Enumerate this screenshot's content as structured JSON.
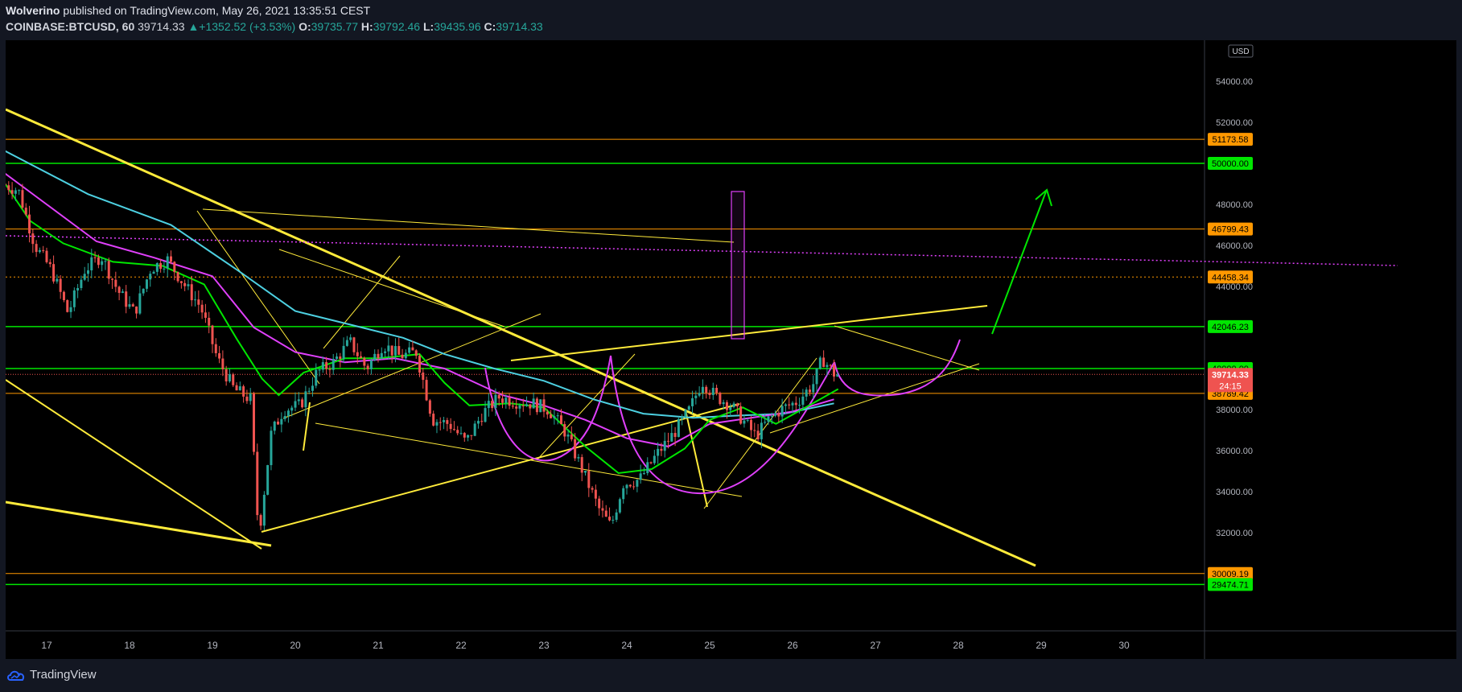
{
  "header": {
    "author": "Wolverino",
    "published_text": "published on TradingView.com, May 26, 2021 13:35:51 CEST",
    "symbol": "COINBASE:BTCUSD, 60",
    "last": "39714.33",
    "change": "+1352.52 (+3.53%)",
    "o_label": "O:",
    "o_value": "39735.77",
    "h_label": "H:",
    "h_value": "39792.46",
    "l_label": "L:",
    "l_value": "39435.96",
    "c_label": "C:",
    "c_value": "39714.33"
  },
  "footer": {
    "brand": "TradingView"
  },
  "colors": {
    "background": "#000000",
    "up": "#26a69a",
    "down": "#ef5350",
    "orange_level": "#ff9800",
    "green_level": "#00e600",
    "yellow": "#ffeb3b",
    "magenta": "#e040fb",
    "cyan": "#4dd0e1"
  },
  "chart_data": {
    "type": "candlestick",
    "currency": "USD",
    "ylim": [
      29000,
      54000
    ],
    "y_ticks": [
      "54000.00",
      "52000.00",
      "48000.00",
      "46000.00",
      "44000.00",
      "38000.00",
      "36000.00",
      "34000.00",
      "32000.00"
    ],
    "x_tick_labels": [
      "17",
      "18",
      "19",
      "20",
      "21",
      "22",
      "23",
      "24",
      "25",
      "26",
      "27",
      "28",
      "29",
      "30"
    ],
    "horizontal_levels": [
      {
        "value": 51173.58,
        "label": "51173.58",
        "color": "orange"
      },
      {
        "value": 50000.0,
        "label": "50000.00",
        "color": "green"
      },
      {
        "value": 46799.43,
        "label": "46799.43",
        "color": "orange"
      },
      {
        "value": 44458.34,
        "label": "44458.34",
        "color": "orange",
        "style": "dotted"
      },
      {
        "value": 42046.23,
        "label": "42046.23",
        "color": "green"
      },
      {
        "value": 40000.0,
        "label": "40000.00",
        "color": "green"
      },
      {
        "value": 38789.42,
        "label": "38789.42",
        "color": "orange"
      },
      {
        "value": 30009.19,
        "label": "30009.19",
        "color": "orange"
      },
      {
        "value": 29474.71,
        "label": "29474.71",
        "color": "green"
      }
    ],
    "last_price": {
      "value": 39714.33,
      "label": "39714.33",
      "countdown": "24:15"
    },
    "price_path": [
      [
        16.5,
        49000
      ],
      [
        16.7,
        48700
      ],
      [
        16.9,
        46000
      ],
      [
        17.1,
        44800
      ],
      [
        17.3,
        42700
      ],
      [
        17.5,
        44800
      ],
      [
        17.7,
        45500
      ],
      [
        17.9,
        43800
      ],
      [
        18.1,
        42700
      ],
      [
        18.3,
        44900
      ],
      [
        18.5,
        45300
      ],
      [
        18.7,
        44100
      ],
      [
        18.9,
        43000
      ],
      [
        19.1,
        40500
      ],
      [
        19.3,
        39000
      ],
      [
        19.5,
        38500
      ],
      [
        19.6,
        31800
      ],
      [
        19.75,
        36800
      ],
      [
        19.9,
        38000
      ],
      [
        20.1,
        38200
      ],
      [
        20.3,
        39800
      ],
      [
        20.5,
        40300
      ],
      [
        20.7,
        41300
      ],
      [
        20.9,
        40000
      ],
      [
        21.1,
        41200
      ],
      [
        21.3,
        40600
      ],
      [
        21.5,
        40800
      ],
      [
        21.7,
        37500
      ],
      [
        21.9,
        37300
      ],
      [
        22.1,
        36400
      ],
      [
        22.3,
        37800
      ],
      [
        22.5,
        38600
      ],
      [
        22.7,
        38400
      ],
      [
        22.9,
        38300
      ],
      [
        23.1,
        38000
      ],
      [
        23.3,
        36900
      ],
      [
        23.5,
        35100
      ],
      [
        23.7,
        33200
      ],
      [
        23.85,
        32300
      ],
      [
        24.0,
        34400
      ],
      [
        24.2,
        34600
      ],
      [
        24.4,
        35800
      ],
      [
        24.6,
        36800
      ],
      [
        24.8,
        38000
      ],
      [
        24.95,
        39400
      ],
      [
        25.1,
        38700
      ],
      [
        25.3,
        38200
      ],
      [
        25.5,
        37200
      ],
      [
        25.6,
        36700
      ],
      [
        25.75,
        37500
      ],
      [
        25.9,
        38000
      ],
      [
        26.1,
        38400
      ],
      [
        26.3,
        39300
      ],
      [
        26.4,
        40500
      ],
      [
        26.55,
        39714
      ]
    ],
    "indicators": [
      {
        "name_color": "cyan",
        "points": [
          [
            16.5,
            50600
          ],
          [
            17.5,
            48500
          ],
          [
            18.5,
            47000
          ],
          [
            19.3,
            44800
          ],
          [
            20.0,
            42800
          ],
          [
            20.7,
            42100
          ],
          [
            21.3,
            41500
          ],
          [
            21.8,
            40700
          ],
          [
            22.4,
            40000
          ],
          [
            23.0,
            39400
          ],
          [
            23.6,
            38500
          ],
          [
            24.2,
            37800
          ],
          [
            24.8,
            37600
          ],
          [
            25.3,
            37700
          ],
          [
            25.9,
            37800
          ],
          [
            26.5,
            38300
          ]
        ]
      },
      {
        "name_color": "magenta",
        "points": [
          [
            16.5,
            49500
          ],
          [
            17.0,
            48000
          ],
          [
            17.6,
            46200
          ],
          [
            18.3,
            45400
          ],
          [
            19.0,
            44500
          ],
          [
            19.5,
            42000
          ],
          [
            20.0,
            40800
          ],
          [
            20.6,
            40300
          ],
          [
            21.2,
            40500
          ],
          [
            21.8,
            40000
          ],
          [
            22.5,
            38700
          ],
          [
            23.0,
            38200
          ],
          [
            23.5,
            37500
          ],
          [
            24.0,
            36600
          ],
          [
            24.5,
            36200
          ],
          [
            25.0,
            37300
          ],
          [
            25.5,
            37600
          ],
          [
            26.0,
            37900
          ],
          [
            26.5,
            38500
          ]
        ]
      },
      {
        "name_color": "green",
        "points": [
          [
            16.5,
            49000
          ],
          [
            16.8,
            47200
          ],
          [
            17.2,
            46100
          ],
          [
            17.8,
            45200
          ],
          [
            18.4,
            45000
          ],
          [
            18.9,
            44100
          ],
          [
            19.3,
            41400
          ],
          [
            19.6,
            39500
          ],
          [
            19.8,
            38700
          ],
          [
            20.1,
            39800
          ],
          [
            20.6,
            40500
          ],
          [
            21.0,
            40500
          ],
          [
            21.5,
            40700
          ],
          [
            21.8,
            39300
          ],
          [
            22.1,
            38200
          ],
          [
            22.6,
            38300
          ],
          [
            23.0,
            38100
          ],
          [
            23.5,
            36200
          ],
          [
            23.9,
            34900
          ],
          [
            24.3,
            35100
          ],
          [
            24.7,
            36100
          ],
          [
            25.0,
            37500
          ],
          [
            25.4,
            38100
          ],
          [
            25.8,
            37300
          ],
          [
            26.2,
            38200
          ],
          [
            26.55,
            39000
          ]
        ]
      }
    ]
  }
}
